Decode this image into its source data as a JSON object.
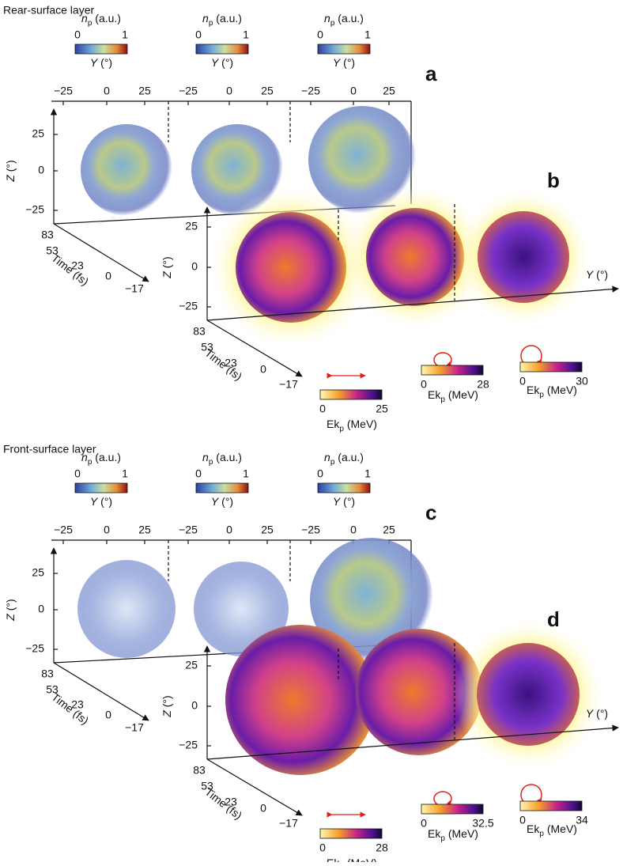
{
  "sections": [
    {
      "title": "Rear-surface layer",
      "density_panel": {
        "letter": "a",
        "colorbars": [
          {
            "label": {
              "symbol": "n",
              "subscript": "p",
              "unit": "(a.u.)"
            },
            "min": "0",
            "max": "1",
            "axis_label": {
              "symbol": "Y",
              "unit": "(°)"
            }
          },
          {
            "label": {
              "symbol": "n",
              "subscript": "p",
              "unit": "(a.u.)"
            },
            "min": "0",
            "max": "1",
            "axis_label": {
              "symbol": "Y",
              "unit": "(°)"
            }
          },
          {
            "label": {
              "symbol": "n",
              "subscript": "p",
              "unit": "(a.u.)"
            },
            "min": "0",
            "max": "1",
            "axis_label": {
              "symbol": "Y",
              "unit": "(°)"
            }
          }
        ],
        "y_ticks": [
          [
            "−25",
            "0",
            "25"
          ],
          [
            "−25",
            "0",
            "25"
          ],
          [
            "−25",
            "0",
            "25"
          ]
        ],
        "z_label": {
          "symbol": "Z",
          "unit": "(°)"
        },
        "z_ticks": [
          "25",
          "0",
          "−25"
        ],
        "time_label": "Time (fs)",
        "time_ticks": [
          "83",
          "53",
          "23",
          "0",
          "−17"
        ]
      },
      "energy_panel": {
        "letter": "b",
        "z_label": {
          "symbol": "Z",
          "unit": "(°)"
        },
        "z_ticks": [
          "25",
          "0",
          "−25"
        ],
        "y_label": {
          "symbol": "Y",
          "unit": "(°)"
        },
        "time_label": "Time (fs)",
        "time_ticks": [
          "83",
          "53",
          "23",
          "0",
          "−17"
        ],
        "colorbars": [
          {
            "min": "0",
            "max": "25",
            "label": {
              "symbol": "Ek",
              "subscript": "p",
              "unit": "(MeV)"
            }
          },
          {
            "min": "0",
            "max": "28",
            "label": {
              "symbol": "Ek",
              "subscript": "p",
              "unit": "(MeV)"
            }
          },
          {
            "min": "0",
            "max": "30",
            "label": {
              "symbol": "Ek",
              "subscript": "p",
              "unit": "(MeV)"
            }
          }
        ]
      }
    },
    {
      "title": "Front-surface layer",
      "density_panel": {
        "letter": "c",
        "colorbars": [
          {
            "label": {
              "symbol": "n",
              "subscript": "p",
              "unit": "(a.u.)"
            },
            "min": "0",
            "max": "1",
            "axis_label": {
              "symbol": "Y",
              "unit": "(°)"
            }
          },
          {
            "label": {
              "symbol": "n",
              "subscript": "p",
              "unit": "(a.u.)"
            },
            "min": "0",
            "max": "1",
            "axis_label": {
              "symbol": "Y",
              "unit": "(°)"
            }
          },
          {
            "label": {
              "symbol": "n",
              "subscript": "p",
              "unit": "(a.u.)"
            },
            "min": "0",
            "max": "1",
            "axis_label": {
              "symbol": "Y",
              "unit": "(°)"
            }
          }
        ],
        "y_ticks": [
          [
            "−25",
            "0",
            "25"
          ],
          [
            "−25",
            "0",
            "25"
          ],
          [
            "−25",
            "0",
            "25"
          ]
        ],
        "z_label": {
          "symbol": "Z",
          "unit": "(°)"
        },
        "z_ticks": [
          "25",
          "0",
          "−25"
        ],
        "time_label": "Time (fs)",
        "time_ticks": [
          "83",
          "53",
          "23",
          "0",
          "−17"
        ]
      },
      "energy_panel": {
        "letter": "d",
        "z_label": {
          "symbol": "Z",
          "unit": "(°)"
        },
        "z_ticks": [
          "25",
          "0",
          "−25"
        ],
        "y_label": {
          "symbol": "Y",
          "unit": "(°)"
        },
        "time_label": "Time (fs)",
        "time_ticks": [
          "83",
          "53",
          "23",
          "0",
          "−17"
        ],
        "colorbars": [
          {
            "min": "0",
            "max": "28",
            "label": {
              "symbol": "Ek",
              "subscript": "p",
              "unit": "(MeV)"
            }
          },
          {
            "min": "0",
            "max": "32.5",
            "label": {
              "symbol": "Ek",
              "subscript": "p",
              "unit": "(MeV)"
            }
          },
          {
            "min": "0",
            "max": "34",
            "label": {
              "symbol": "Ek",
              "subscript": "p",
              "unit": "(MeV)"
            }
          }
        ]
      }
    }
  ]
}
